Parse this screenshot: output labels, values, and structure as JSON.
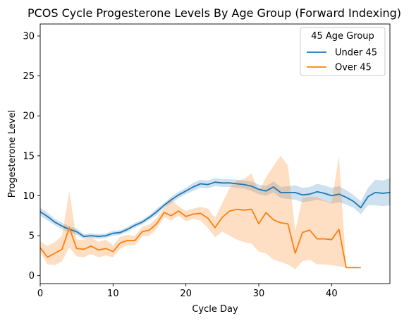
{
  "chart_data": {
    "type": "line",
    "title": "PCOS Cycle Progesterone Levels By Age Group (Forward Indexing)",
    "xlabel": "Cycle Day",
    "ylabel": "Progesterone Level",
    "xlim": [
      0,
      48
    ],
    "ylim": [
      -1,
      31.5
    ],
    "xticks": [
      0,
      10,
      20,
      30,
      40
    ],
    "yticks": [
      0,
      5,
      10,
      15,
      20,
      25,
      30
    ],
    "grid": false,
    "legend": {
      "title": "45 Age Group",
      "position": "top-right"
    },
    "series": [
      {
        "name": "Under 45",
        "color": "#1f77b4",
        "band_color": "#1f77b4",
        "x": [
          0,
          1,
          2,
          3,
          4,
          5,
          6,
          7,
          8,
          9,
          10,
          11,
          12,
          13,
          14,
          15,
          16,
          17,
          18,
          19,
          20,
          21,
          22,
          23,
          24,
          25,
          26,
          27,
          28,
          29,
          30,
          31,
          32,
          33,
          34,
          35,
          36,
          37,
          38,
          39,
          40,
          41,
          42,
          43,
          44,
          45,
          46,
          47,
          48
        ],
        "y": [
          8.0,
          7.4,
          6.7,
          6.2,
          5.8,
          5.5,
          4.9,
          5.0,
          4.9,
          5.0,
          5.3,
          5.4,
          5.8,
          6.3,
          6.7,
          7.3,
          8.0,
          8.8,
          9.5,
          10.1,
          10.6,
          11.1,
          11.5,
          11.4,
          11.7,
          11.6,
          11.6,
          11.5,
          11.4,
          11.2,
          10.8,
          10.6,
          11.1,
          10.4,
          10.4,
          10.4,
          10.1,
          10.2,
          10.5,
          10.3,
          10.0,
          10.2,
          9.8,
          9.3,
          8.5,
          9.9,
          10.4,
          10.3,
          10.4
        ],
        "lower": [
          7.5,
          6.9,
          6.3,
          5.8,
          5.4,
          5.1,
          4.6,
          4.7,
          4.6,
          4.7,
          5.0,
          5.1,
          5.5,
          6.0,
          6.4,
          7.0,
          7.6,
          8.5,
          9.1,
          9.7,
          10.2,
          10.6,
          11.0,
          10.9,
          11.2,
          11.1,
          11.1,
          11.0,
          10.9,
          10.6,
          10.2,
          10.0,
          10.4,
          9.7,
          9.6,
          9.5,
          9.2,
          9.3,
          9.5,
          9.3,
          9.0,
          9.2,
          8.9,
          8.5,
          7.7,
          8.8,
          8.8,
          8.7,
          8.8
        ],
        "upper": [
          8.5,
          7.9,
          7.1,
          6.6,
          6.2,
          5.9,
          5.2,
          5.3,
          5.2,
          5.3,
          5.6,
          5.7,
          6.1,
          6.6,
          7.0,
          7.6,
          8.4,
          9.1,
          9.9,
          10.5,
          11.0,
          11.6,
          12.0,
          11.9,
          12.2,
          12.1,
          12.1,
          12.0,
          11.9,
          11.8,
          11.4,
          11.2,
          11.8,
          11.1,
          11.2,
          11.3,
          11.0,
          11.1,
          11.5,
          11.3,
          11.0,
          11.2,
          10.7,
          10.1,
          9.3,
          11.0,
          12.0,
          11.9,
          12.2
        ]
      },
      {
        "name": "Over 45",
        "color": "#ff7f0e",
        "band_color": "#ff7f0e",
        "x": [
          0,
          1,
          2,
          3,
          4,
          5,
          6,
          7,
          8,
          9,
          10,
          11,
          12,
          13,
          14,
          15,
          16,
          17,
          18,
          19,
          20,
          21,
          22,
          23,
          24,
          25,
          26,
          27,
          28,
          29,
          30,
          31,
          32,
          33,
          34,
          35,
          36,
          37,
          38,
          39,
          40,
          41,
          42,
          43,
          44
        ],
        "y": [
          3.5,
          2.3,
          2.8,
          3.3,
          6.0,
          3.4,
          3.3,
          3.7,
          3.2,
          3.4,
          3.0,
          4.1,
          4.4,
          4.4,
          5.5,
          5.7,
          6.5,
          7.9,
          7.5,
          8.1,
          7.4,
          7.7,
          7.8,
          7.2,
          6.0,
          7.3,
          8.1,
          8.3,
          8.2,
          8.3,
          6.5,
          7.9,
          7.0,
          6.6,
          6.5,
          2.8,
          5.4,
          5.7,
          4.6,
          4.6,
          4.5,
          5.8,
          1.0,
          1.0,
          1.0
        ],
        "lower": [
          3.0,
          1.4,
          1.3,
          1.8,
          3.5,
          2.4,
          2.3,
          2.7,
          2.3,
          2.5,
          2.3,
          3.4,
          3.8,
          3.8,
          4.9,
          5.0,
          5.9,
          7.3,
          6.9,
          7.5,
          6.8,
          7.1,
          6.9,
          6.0,
          4.8,
          5.5,
          5.0,
          4.5,
          4.2,
          4.0,
          3.0,
          2.8,
          2.0,
          1.7,
          1.4,
          0.8,
          1.8,
          2.0,
          1.4,
          1.4,
          1.3,
          1.2,
          1.0,
          1.0,
          1.0
        ],
        "upper": [
          4.3,
          3.7,
          4.2,
          5.0,
          10.6,
          4.5,
          4.5,
          4.8,
          4.2,
          4.5,
          3.8,
          4.9,
          5.1,
          5.0,
          6.1,
          6.4,
          7.2,
          8.5,
          9.5,
          8.7,
          8.1,
          8.4,
          8.6,
          8.4,
          7.2,
          9.1,
          11.0,
          11.9,
          12.1,
          12.8,
          10.5,
          12.3,
          13.7,
          15.0,
          13.8,
          5.6,
          9.7,
          9.9,
          9.8,
          9.4,
          9.1,
          15.0,
          1.0,
          1.0,
          1.0
        ]
      }
    ]
  }
}
